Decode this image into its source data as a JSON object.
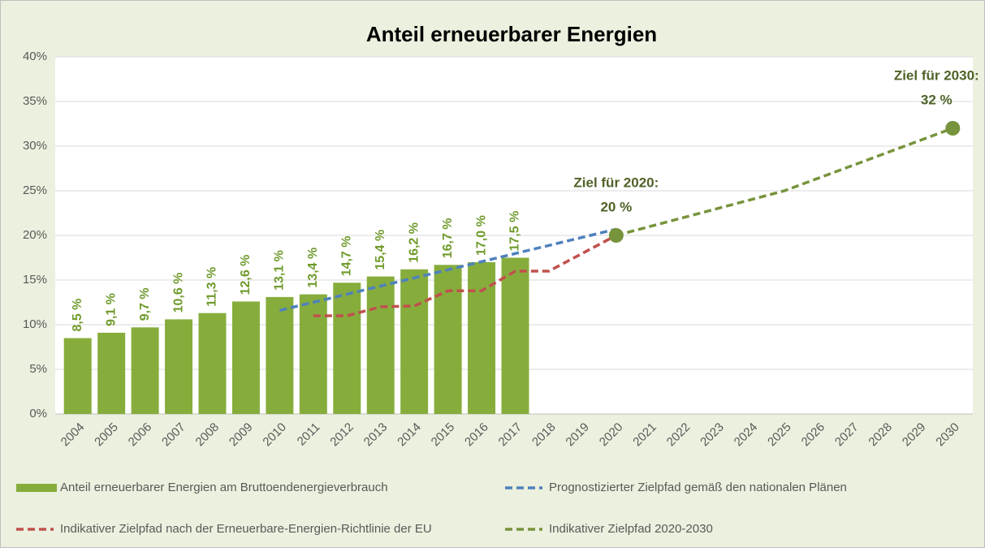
{
  "chart_data": {
    "type": "bar",
    "title": "Anteil erneuerbarer Energien",
    "categories": [
      "2004",
      "2005",
      "2006",
      "2007",
      "2008",
      "2009",
      "2010",
      "2011",
      "2012",
      "2013",
      "2014",
      "2015",
      "2016",
      "2017",
      "2018",
      "2019",
      "2020",
      "2021",
      "2022",
      "2023",
      "2024",
      "2025",
      "2026",
      "2027",
      "2028",
      "2029",
      "2030"
    ],
    "series": [
      {
        "name": "Anteil erneuerbarer Energien am Bruttoendenergieverbrauch",
        "type": "bar",
        "color": "#86ad3c",
        "values": [
          8.5,
          9.1,
          9.7,
          10.6,
          11.3,
          12.6,
          13.1,
          13.4,
          14.7,
          15.4,
          16.2,
          16.7,
          17.0,
          17.5,
          null,
          null,
          null,
          null,
          null,
          null,
          null,
          null,
          null,
          null,
          null,
          null,
          null
        ],
        "value_labels": [
          "8,5 %",
          "9,1 %",
          "9,7 %",
          "10,6 %",
          "11,3 %",
          "12,6 %",
          "13,1 %",
          "13,4 %",
          "14,7 %",
          "15,4 %",
          "16,2 %",
          "16,7 %",
          "17,0 %",
          "17,5 %",
          null,
          null,
          null,
          null,
          null,
          null,
          null,
          null,
          null,
          null,
          null,
          null,
          null
        ]
      },
      {
        "name": "Prognostizierter Zielpfad gemäß den nationalen Plänen",
        "type": "line",
        "color": "#4f81bd",
        "values": [
          null,
          null,
          null,
          null,
          null,
          null,
          11.6,
          null,
          null,
          null,
          null,
          null,
          null,
          null,
          null,
          null,
          20.7,
          null,
          null,
          null,
          null,
          null,
          null,
          null,
          null,
          null,
          null
        ]
      },
      {
        "name": "Indikativer Zielpfad nach der Erneuerbare-Energien-Richtlinie der EU",
        "type": "line",
        "color": "#c0504d",
        "values": [
          null,
          null,
          null,
          null,
          null,
          null,
          null,
          11.0,
          11.0,
          12.0,
          12.1,
          13.8,
          13.8,
          16.0,
          16.0,
          null,
          20.0,
          null,
          null,
          null,
          null,
          null,
          null,
          null,
          null,
          null,
          null
        ]
      },
      {
        "name": "Indikativer Zielpfad 2020-2030",
        "type": "line",
        "color": "#77933c",
        "values": [
          null,
          null,
          null,
          null,
          null,
          null,
          null,
          null,
          null,
          null,
          null,
          null,
          null,
          null,
          null,
          null,
          20,
          null,
          null,
          null,
          null,
          25,
          null,
          null,
          null,
          null,
          32
        ]
      }
    ],
    "annotations": [
      {
        "x": "2020",
        "y": 20,
        "text": [
          "Ziel für 2020:",
          "20 %"
        ]
      },
      {
        "x": "2030",
        "y": 32,
        "text": [
          "Ziel für 2030:",
          "32 %"
        ]
      }
    ],
    "ylim": [
      0,
      40
    ],
    "yticks": [
      {
        "value": 0,
        "label": "0%"
      },
      {
        "value": 5,
        "label": "5%"
      },
      {
        "value": 10,
        "label": "10%"
      },
      {
        "value": 15,
        "label": "15%"
      },
      {
        "value": 20,
        "label": "20%"
      },
      {
        "value": 25,
        "label": "25%"
      },
      {
        "value": 30,
        "label": "30%"
      },
      {
        "value": 35,
        "label": "35%"
      },
      {
        "value": 40,
        "label": "40%"
      }
    ],
    "grid": true,
    "legend": "bottom"
  }
}
